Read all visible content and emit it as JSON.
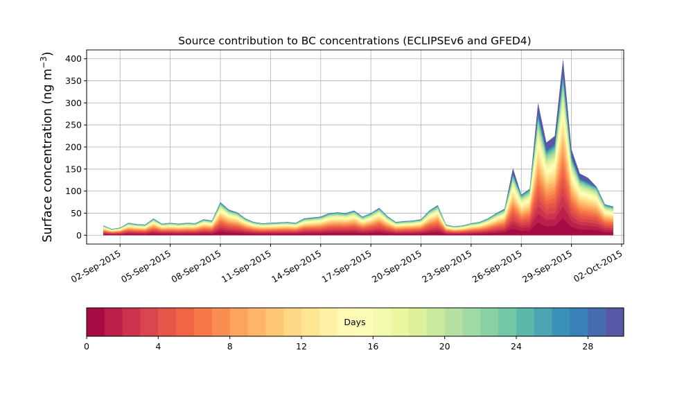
{
  "chart_data": {
    "type": "area",
    "title": "Source contribution to BC concentrations (ECLIPSEv6 and GFED4)",
    "xlabel": "",
    "ylabel": "Surface concentration (ng m",
    "ylabel_unit_exponent": "−3",
    "ylabel_close": ")",
    "ylim": [
      -20,
      420
    ],
    "y_ticks": [
      0,
      50,
      100,
      150,
      200,
      250,
      300,
      350,
      400
    ],
    "x_range": [
      "2015-08-31T00:00",
      "2015-10-02T03:00"
    ],
    "x_ticks": [
      "02-Sep-2015",
      "05-Sep-2015",
      "08-Sep-2015",
      "11-Sep-2015",
      "14-Sep-2015",
      "17-Sep-2015",
      "20-Sep-2015",
      "23-Sep-2015",
      "26-Sep-2015",
      "29-Sep-2015",
      "02-Oct-2015"
    ],
    "x_tick_dates": [
      "2015-09-02",
      "2015-09-05",
      "2015-09-08",
      "2015-09-11",
      "2015-09-14",
      "2015-09-17",
      "2015-09-20",
      "2015-09-23",
      "2015-09-26",
      "2015-09-29",
      "2015-10-02"
    ],
    "grid": true,
    "total_series": {
      "x": [
        "2015-09-01T00:00",
        "2015-09-01T12:00",
        "2015-09-02T00:00",
        "2015-09-02T12:00",
        "2015-09-03T00:00",
        "2015-09-03T12:00",
        "2015-09-04T00:00",
        "2015-09-04T12:00",
        "2015-09-05T00:00",
        "2015-09-05T12:00",
        "2015-09-06T00:00",
        "2015-09-06T12:00",
        "2015-09-07T00:00",
        "2015-09-07T12:00",
        "2015-09-08T00:00",
        "2015-09-08T12:00",
        "2015-09-09T00:00",
        "2015-09-09T12:00",
        "2015-09-10T00:00",
        "2015-09-10T12:00",
        "2015-09-11T00:00",
        "2015-09-11T12:00",
        "2015-09-12T00:00",
        "2015-09-12T12:00",
        "2015-09-13T00:00",
        "2015-09-13T12:00",
        "2015-09-14T00:00",
        "2015-09-14T12:00",
        "2015-09-15T00:00",
        "2015-09-15T12:00",
        "2015-09-16T00:00",
        "2015-09-16T12:00",
        "2015-09-17T00:00",
        "2015-09-17T12:00",
        "2015-09-18T00:00",
        "2015-09-18T12:00",
        "2015-09-19T00:00",
        "2015-09-19T12:00",
        "2015-09-20T00:00",
        "2015-09-20T12:00",
        "2015-09-21T00:00",
        "2015-09-21T12:00",
        "2015-09-22T00:00",
        "2015-09-22T12:00",
        "2015-09-23T00:00",
        "2015-09-23T12:00",
        "2015-09-24T00:00",
        "2015-09-24T12:00",
        "2015-09-25T00:00",
        "2015-09-25T12:00",
        "2015-09-26T00:00",
        "2015-09-26T12:00",
        "2015-09-27T00:00",
        "2015-09-27T12:00",
        "2015-09-28T00:00",
        "2015-09-28T12:00",
        "2015-09-29T00:00",
        "2015-09-29T12:00",
        "2015-09-30T00:00",
        "2015-09-30T12:00",
        "2015-10-01T00:00",
        "2015-10-01T12:00"
      ],
      "y": [
        22,
        14,
        17,
        28,
        25,
        24,
        38,
        26,
        28,
        26,
        28,
        27,
        36,
        33,
        75,
        58,
        52,
        38,
        30,
        27,
        28,
        29,
        30,
        28,
        38,
        40,
        42,
        50,
        52,
        50,
        56,
        42,
        50,
        62,
        43,
        30,
        32,
        33,
        36,
        56,
        68,
        24,
        20,
        22,
        27,
        30,
        38,
        50,
        60,
        152,
        92,
        105,
        300,
        210,
        225,
        400,
        195,
        140,
        130,
        110,
        70,
        65
      ]
    },
    "colorbar": {
      "label": "Days",
      "range": [
        0,
        30
      ],
      "ticks": [
        0,
        4,
        8,
        12,
        16,
        20,
        24,
        28
      ],
      "segments": 30,
      "colormap": "Spectral"
    }
  }
}
